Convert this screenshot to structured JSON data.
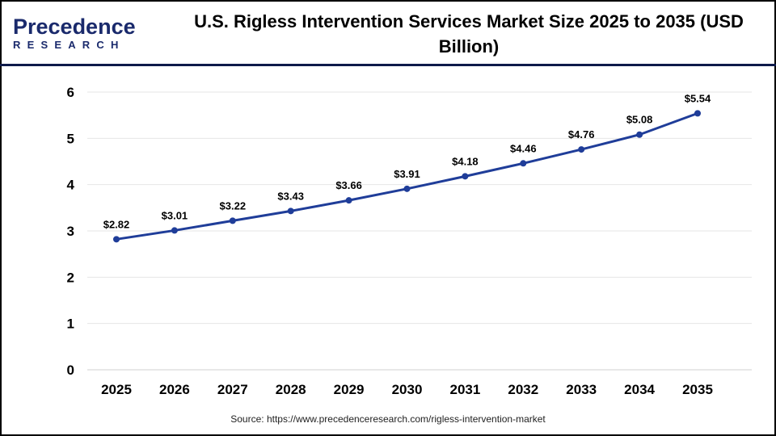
{
  "logo": {
    "line1": "Precedence",
    "line2": "RESEARCH"
  },
  "title": "U.S. Rigless Intervention Services Market Size 2025 to 2035 (USD Billion)",
  "source": "Source: https://www.precedenceresearch.com/rigless-intervention-market",
  "colors": {
    "line": "#1f3d99",
    "grid": "#e6e6e6",
    "header_rule": "#0d1a4a"
  },
  "chart_data": {
    "type": "line",
    "title": "U.S. Rigless Intervention Services Market Size 2025 to 2035 (USD Billion)",
    "categories": [
      "2025",
      "2026",
      "2027",
      "2028",
      "2029",
      "2030",
      "2031",
      "2032",
      "2033",
      "2034",
      "2035"
    ],
    "values": [
      2.82,
      3.01,
      3.22,
      3.43,
      3.66,
      3.91,
      4.18,
      4.46,
      4.76,
      5.08,
      5.54
    ],
    "data_labels": [
      "$2.82",
      "$3.01",
      "$3.22",
      "$3.43",
      "$3.66",
      "$3.91",
      "$4.18",
      "$4.46",
      "$4.76",
      "$5.08",
      "$5.54"
    ],
    "yticks": [
      0,
      1,
      2,
      3,
      4,
      5,
      6
    ],
    "ylim": [
      0,
      6
    ],
    "grid": true,
    "legend": "none"
  }
}
